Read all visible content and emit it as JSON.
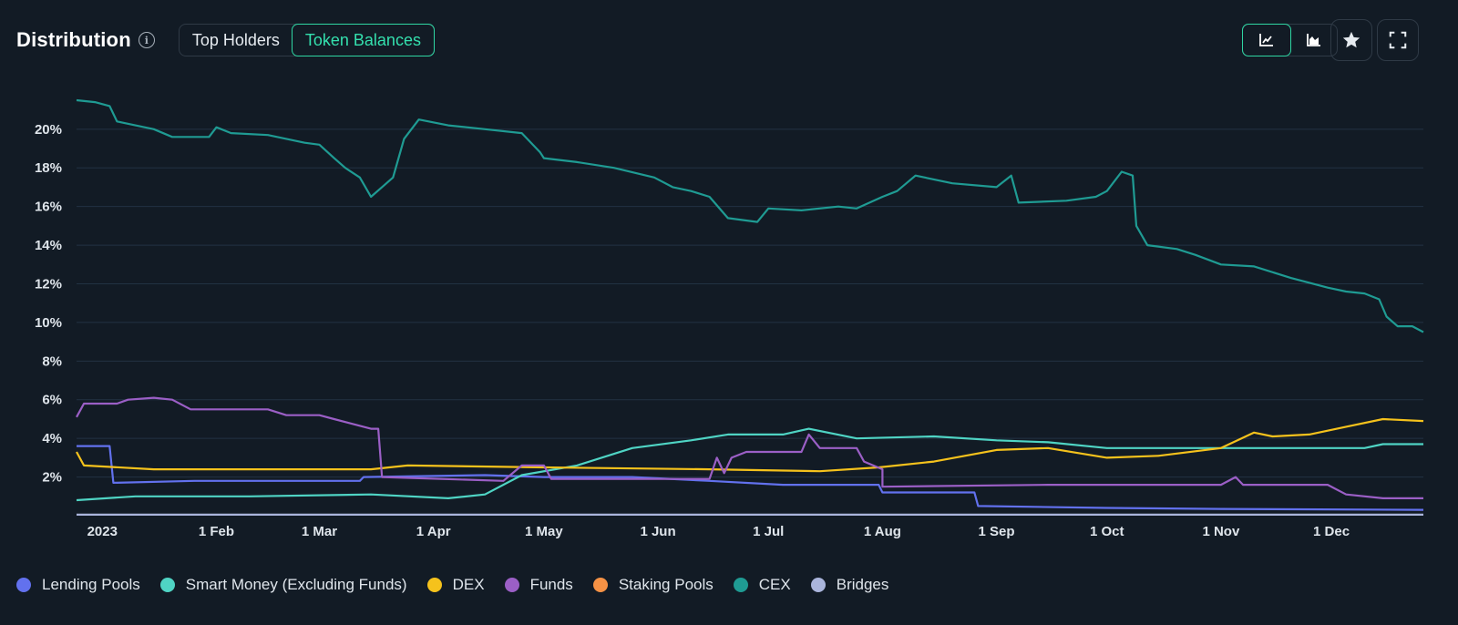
{
  "header": {
    "title": "Distribution",
    "info_icon": "info-icon",
    "tabs": [
      {
        "label": "Top Holders",
        "active": false
      },
      {
        "label": "Token Balances",
        "active": true
      }
    ]
  },
  "toolbar": {
    "line_view_icon": "line-chart-icon",
    "area_view_icon": "area-chart-icon",
    "favorite_icon": "star-icon",
    "fullscreen_icon": "fullscreen-icon",
    "accent": "#2fd6a3"
  },
  "chart_data": {
    "type": "line",
    "title": "",
    "xlabel": "",
    "ylabel": "",
    "x_range": [
      "2022-12-25",
      "2023-12-26"
    ],
    "ylim": [
      0,
      21.5
    ],
    "y_ticks": [
      2,
      4,
      6,
      8,
      10,
      12,
      14,
      16,
      18,
      20
    ],
    "y_tick_labels": [
      "2%",
      "4%",
      "6%",
      "8%",
      "10%",
      "12%",
      "14%",
      "16%",
      "18%",
      "20%"
    ],
    "x_ticks": [
      "2023-01-01",
      "2023-02-01",
      "2023-03-01",
      "2023-04-01",
      "2023-05-01",
      "2023-06-01",
      "2023-07-01",
      "2023-08-01",
      "2023-09-01",
      "2023-10-01",
      "2023-11-01",
      "2023-12-01"
    ],
    "x_tick_labels": [
      "2023",
      "1 Feb",
      "1 Mar",
      "1 Apr",
      "1 May",
      "1 Jun",
      "1 Jul",
      "1 Aug",
      "1 Sep",
      "1 Oct",
      "1 Nov",
      "1 Dec"
    ],
    "grid": true,
    "legend_position": "bottom-left",
    "series": [
      {
        "name": "Lending Pools",
        "color": "#6271ee",
        "points": [
          [
            "2022-12-25",
            3.6
          ],
          [
            "2023-01-03",
            3.6
          ],
          [
            "2023-01-04",
            1.7
          ],
          [
            "2023-01-26",
            1.8
          ],
          [
            "2023-02-26",
            1.8
          ],
          [
            "2023-03-12",
            1.8
          ],
          [
            "2023-03-13",
            2.0
          ],
          [
            "2023-04-15",
            2.1
          ],
          [
            "2023-05-01",
            2.0
          ],
          [
            "2023-05-25",
            2.0
          ],
          [
            "2023-06-15",
            1.8
          ],
          [
            "2023-07-05",
            1.6
          ],
          [
            "2023-07-31",
            1.6
          ],
          [
            "2023-08-01",
            1.2
          ],
          [
            "2023-08-26",
            1.2
          ],
          [
            "2023-08-27",
            0.5
          ],
          [
            "2023-10-01",
            0.4
          ],
          [
            "2023-11-01",
            0.35
          ],
          [
            "2023-12-26",
            0.3
          ]
        ]
      },
      {
        "name": "Smart Money (Excluding Funds)",
        "color": "#4fd4c4",
        "points": [
          [
            "2022-12-25",
            0.8
          ],
          [
            "2023-01-10",
            1.0
          ],
          [
            "2023-02-10",
            1.0
          ],
          [
            "2023-03-15",
            1.1
          ],
          [
            "2023-04-05",
            0.9
          ],
          [
            "2023-04-15",
            1.1
          ],
          [
            "2023-04-25",
            2.1
          ],
          [
            "2023-05-10",
            2.6
          ],
          [
            "2023-05-25",
            3.5
          ],
          [
            "2023-06-10",
            3.9
          ],
          [
            "2023-06-20",
            4.2
          ],
          [
            "2023-07-05",
            4.2
          ],
          [
            "2023-07-12",
            4.5
          ],
          [
            "2023-07-25",
            4.0
          ],
          [
            "2023-08-15",
            4.1
          ],
          [
            "2023-09-01",
            3.9
          ],
          [
            "2023-09-15",
            3.8
          ],
          [
            "2023-10-01",
            3.5
          ],
          [
            "2023-11-01",
            3.5
          ],
          [
            "2023-12-10",
            3.5
          ],
          [
            "2023-12-15",
            3.7
          ],
          [
            "2023-12-26",
            3.7
          ]
        ]
      },
      {
        "name": "DEX",
        "color": "#f5c21c",
        "points": [
          [
            "2022-12-25",
            3.3
          ],
          [
            "2022-12-27",
            2.6
          ],
          [
            "2023-01-15",
            2.4
          ],
          [
            "2023-02-15",
            2.4
          ],
          [
            "2023-03-15",
            2.4
          ],
          [
            "2023-03-25",
            2.6
          ],
          [
            "2023-05-01",
            2.5
          ],
          [
            "2023-06-15",
            2.4
          ],
          [
            "2023-07-15",
            2.3
          ],
          [
            "2023-07-31",
            2.5
          ],
          [
            "2023-08-15",
            2.8
          ],
          [
            "2023-09-01",
            3.4
          ],
          [
            "2023-09-15",
            3.5
          ],
          [
            "2023-10-01",
            3.0
          ],
          [
            "2023-10-15",
            3.1
          ],
          [
            "2023-11-01",
            3.5
          ],
          [
            "2023-11-10",
            4.3
          ],
          [
            "2023-11-15",
            4.1
          ],
          [
            "2023-11-25",
            4.2
          ],
          [
            "2023-12-05",
            4.6
          ],
          [
            "2023-12-15",
            5.0
          ],
          [
            "2023-12-26",
            4.9
          ]
        ]
      },
      {
        "name": "Funds",
        "color": "#9b5fc6",
        "points": [
          [
            "2022-12-25",
            5.1
          ],
          [
            "2022-12-27",
            5.8
          ],
          [
            "2023-01-05",
            5.8
          ],
          [
            "2023-01-08",
            6.0
          ],
          [
            "2023-01-15",
            6.1
          ],
          [
            "2023-01-20",
            6.0
          ],
          [
            "2023-01-25",
            5.5
          ],
          [
            "2023-02-15",
            5.5
          ],
          [
            "2023-02-20",
            5.2
          ],
          [
            "2023-03-01",
            5.2
          ],
          [
            "2023-03-05",
            5.0
          ],
          [
            "2023-03-15",
            4.5
          ],
          [
            "2023-03-17",
            4.5
          ],
          [
            "2023-03-18",
            2.0
          ],
          [
            "2023-04-20",
            1.8
          ],
          [
            "2023-04-25",
            2.6
          ],
          [
            "2023-05-01",
            2.6
          ],
          [
            "2023-05-03",
            1.9
          ],
          [
            "2023-06-15",
            1.9
          ],
          [
            "2023-06-17",
            3.0
          ],
          [
            "2023-06-19",
            2.2
          ],
          [
            "2023-06-21",
            3.0
          ],
          [
            "2023-06-25",
            3.3
          ],
          [
            "2023-07-10",
            3.3
          ],
          [
            "2023-07-12",
            4.2
          ],
          [
            "2023-07-15",
            3.5
          ],
          [
            "2023-07-25",
            3.5
          ],
          [
            "2023-07-27",
            2.8
          ],
          [
            "2023-08-01",
            2.4
          ],
          [
            "2023-08-01",
            1.5
          ],
          [
            "2023-09-15",
            1.6
          ],
          [
            "2023-10-15",
            1.6
          ],
          [
            "2023-11-01",
            1.6
          ],
          [
            "2023-11-05",
            2.0
          ],
          [
            "2023-11-07",
            1.6
          ],
          [
            "2023-11-30",
            1.6
          ],
          [
            "2023-12-05",
            1.1
          ],
          [
            "2023-12-15",
            0.9
          ],
          [
            "2023-12-26",
            0.9
          ]
        ]
      },
      {
        "name": "Staking Pools",
        "color": "#f59245",
        "points": []
      },
      {
        "name": "CEX",
        "color": "#1f9b93",
        "points": [
          [
            "2022-12-25",
            21.5
          ],
          [
            "2022-12-30",
            21.4
          ],
          [
            "2023-01-03",
            21.2
          ],
          [
            "2023-01-05",
            20.4
          ],
          [
            "2023-01-15",
            20.0
          ],
          [
            "2023-01-20",
            19.6
          ],
          [
            "2023-01-30",
            19.6
          ],
          [
            "2023-02-01",
            20.1
          ],
          [
            "2023-02-05",
            19.8
          ],
          [
            "2023-02-15",
            19.7
          ],
          [
            "2023-02-25",
            19.3
          ],
          [
            "2023-03-01",
            19.2
          ],
          [
            "2023-03-05",
            18.5
          ],
          [
            "2023-03-08",
            18.0
          ],
          [
            "2023-03-12",
            17.5
          ],
          [
            "2023-03-15",
            16.5
          ],
          [
            "2023-03-18",
            17.0
          ],
          [
            "2023-03-21",
            17.5
          ],
          [
            "2023-03-24",
            19.5
          ],
          [
            "2023-03-28",
            20.5
          ],
          [
            "2023-04-05",
            20.2
          ],
          [
            "2023-04-15",
            20.0
          ],
          [
            "2023-04-25",
            19.8
          ],
          [
            "2023-04-30",
            18.8
          ],
          [
            "2023-05-01",
            18.5
          ],
          [
            "2023-05-10",
            18.3
          ],
          [
            "2023-05-20",
            18.0
          ],
          [
            "2023-05-31",
            17.5
          ],
          [
            "2023-06-05",
            17.0
          ],
          [
            "2023-06-10",
            16.8
          ],
          [
            "2023-06-15",
            16.5
          ],
          [
            "2023-06-20",
            15.4
          ],
          [
            "2023-06-28",
            15.2
          ],
          [
            "2023-07-01",
            15.9
          ],
          [
            "2023-07-10",
            15.8
          ],
          [
            "2023-07-20",
            16.0
          ],
          [
            "2023-07-25",
            15.9
          ],
          [
            "2023-08-01",
            16.5
          ],
          [
            "2023-08-05",
            16.8
          ],
          [
            "2023-08-10",
            17.6
          ],
          [
            "2023-08-20",
            17.2
          ],
          [
            "2023-09-01",
            17.0
          ],
          [
            "2023-09-05",
            17.6
          ],
          [
            "2023-09-07",
            16.2
          ],
          [
            "2023-09-20",
            16.3
          ],
          [
            "2023-09-28",
            16.5
          ],
          [
            "2023-10-01",
            16.8
          ],
          [
            "2023-10-05",
            17.8
          ],
          [
            "2023-10-08",
            17.6
          ],
          [
            "2023-10-09",
            15.0
          ],
          [
            "2023-10-12",
            14.0
          ],
          [
            "2023-10-20",
            13.8
          ],
          [
            "2023-10-25",
            13.5
          ],
          [
            "2023-11-01",
            13.0
          ],
          [
            "2023-11-10",
            12.9
          ],
          [
            "2023-11-20",
            12.3
          ],
          [
            "2023-11-30",
            11.8
          ],
          [
            "2023-12-05",
            11.6
          ],
          [
            "2023-12-10",
            11.5
          ],
          [
            "2023-12-14",
            11.2
          ],
          [
            "2023-12-16",
            10.3
          ],
          [
            "2023-12-19",
            9.8
          ],
          [
            "2023-12-23",
            9.8
          ],
          [
            "2023-12-26",
            9.5
          ]
        ]
      },
      {
        "name": "Bridges",
        "color": "#aab5dc",
        "points": [
          [
            "2022-12-25",
            0.05
          ],
          [
            "2023-12-26",
            0.05
          ]
        ]
      }
    ]
  }
}
